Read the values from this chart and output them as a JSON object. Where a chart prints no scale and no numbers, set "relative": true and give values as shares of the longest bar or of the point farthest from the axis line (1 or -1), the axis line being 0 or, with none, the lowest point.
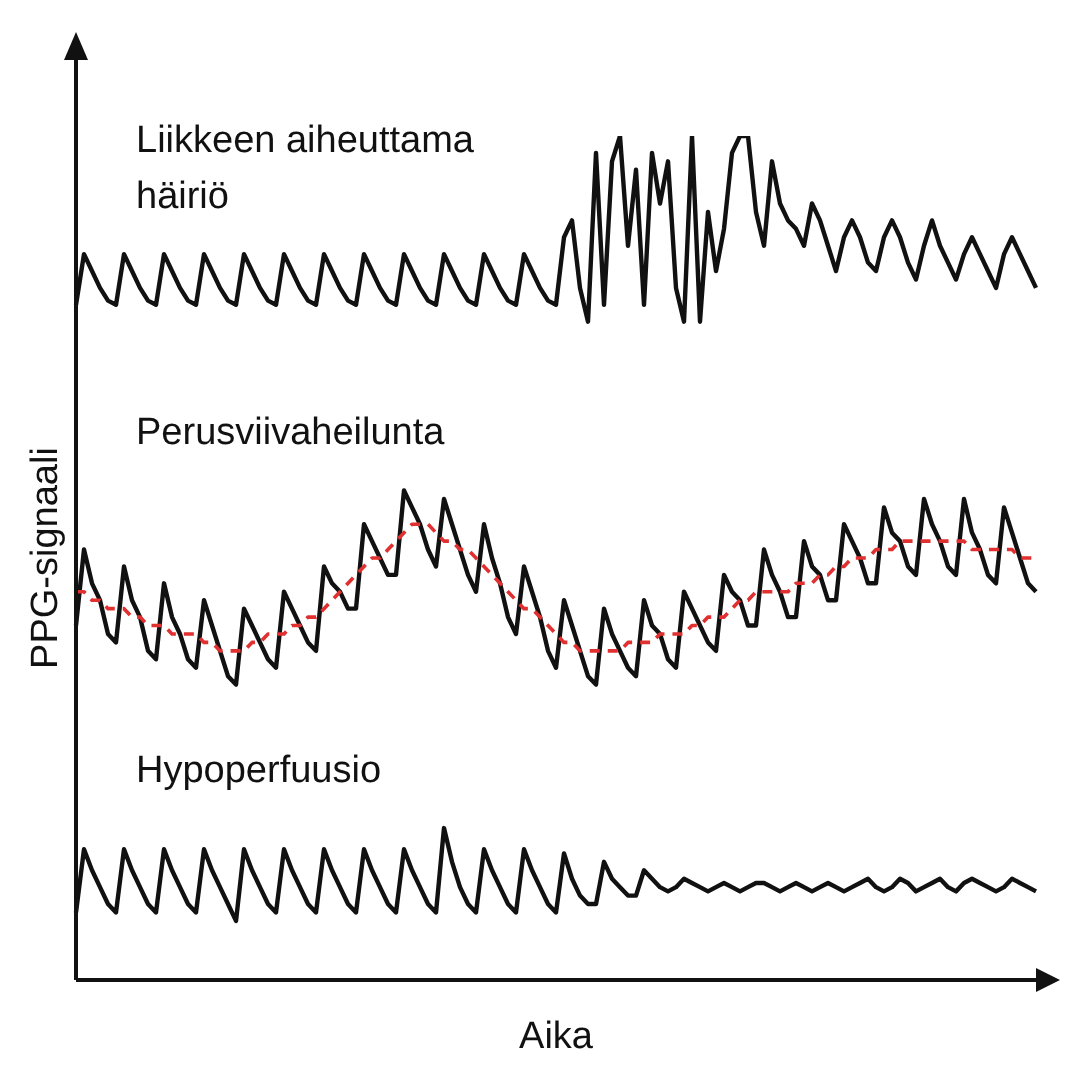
{
  "chart_data": {
    "type": "line",
    "relative": true,
    "xlabel": "Aika",
    "ylabel": "PPG-signaali",
    "categories": [
      null,
      null,
      null,
      null,
      null,
      null,
      null,
      null,
      null,
      null,
      null,
      null,
      null,
      null,
      null,
      null,
      null,
      null,
      null,
      null,
      null,
      null,
      null,
      null,
      null,
      null,
      null,
      null,
      null,
      null,
      null,
      null,
      null,
      null,
      null,
      null,
      null,
      null,
      null,
      null,
      null,
      null,
      null,
      null,
      null,
      null,
      null,
      null,
      null,
      null,
      null,
      null,
      null,
      null,
      null,
      null,
      null,
      null,
      null,
      null,
      null,
      null,
      null,
      null,
      null,
      null,
      null,
      null,
      null,
      null,
      null,
      null,
      null,
      null,
      null,
      null,
      null,
      null,
      null,
      null,
      null,
      null,
      null,
      null,
      null,
      null,
      null,
      null,
      null,
      null,
      null,
      null,
      null,
      null,
      null,
      null,
      null,
      null,
      null,
      null,
      null,
      null,
      null,
      null,
      null,
      null,
      null,
      null,
      null,
      null,
      null,
      null,
      null,
      null,
      null,
      null,
      null,
      null,
      null,
      null,
      null
    ],
    "series": [
      {
        "name": "Liikkeen aiheuttama häiriö",
        "color": "#111111",
        "values": [
          0.8,
          0.86,
          0.84,
          0.82,
          0.805,
          0.8,
          0.86,
          0.84,
          0.82,
          0.805,
          0.8,
          0.86,
          0.84,
          0.82,
          0.805,
          0.8,
          0.86,
          0.84,
          0.82,
          0.805,
          0.8,
          0.86,
          0.84,
          0.82,
          0.805,
          0.8,
          0.86,
          0.84,
          0.82,
          0.805,
          0.8,
          0.86,
          0.84,
          0.82,
          0.805,
          0.8,
          0.86,
          0.84,
          0.82,
          0.805,
          0.8,
          0.86,
          0.84,
          0.82,
          0.805,
          0.8,
          0.86,
          0.84,
          0.82,
          0.805,
          0.8,
          0.86,
          0.84,
          0.82,
          0.805,
          0.8,
          0.86,
          0.84,
          0.82,
          0.805,
          0.8,
          0.88,
          0.9,
          0.82,
          0.78,
          0.98,
          0.8,
          0.97,
          1,
          0.87,
          0.96,
          0.8,
          0.98,
          0.92,
          0.97,
          0.82,
          0.78,
          1,
          0.78,
          0.91,
          0.84,
          0.89,
          0.98,
          1,
          1,
          0.91,
          0.87,
          0.97,
          0.92,
          0.9,
          0.89,
          0.87,
          0.92,
          0.9,
          0.87,
          0.84,
          0.88,
          0.9,
          0.88,
          0.85,
          0.84,
          0.88,
          0.9,
          0.88,
          0.85,
          0.83,
          0.87,
          0.9,
          0.87,
          0.85,
          0.83,
          0.86,
          0.88,
          0.86,
          0.84,
          0.82,
          0.86,
          0.88,
          0.86,
          0.84,
          0.82
        ]
      },
      {
        "name": "Perusviivaheilunta",
        "color": "#111111",
        "values": [
          0.42,
          0.51,
          0.47,
          0.45,
          0.41,
          0.4,
          0.49,
          0.45,
          0.43,
          0.39,
          0.38,
          0.47,
          0.43,
          0.41,
          0.38,
          0.37,
          0.45,
          0.42,
          0.39,
          0.36,
          0.35,
          0.44,
          0.42,
          0.4,
          0.38,
          0.37,
          0.46,
          0.44,
          0.42,
          0.4,
          0.39,
          0.49,
          0.47,
          0.46,
          0.44,
          0.44,
          0.54,
          0.52,
          0.5,
          0.48,
          0.48,
          0.58,
          0.56,
          0.54,
          0.51,
          0.49,
          0.57,
          0.54,
          0.51,
          0.48,
          0.46,
          0.54,
          0.5,
          0.47,
          0.43,
          0.41,
          0.49,
          0.46,
          0.43,
          0.39,
          0.37,
          0.45,
          0.42,
          0.39,
          0.36,
          0.35,
          0.44,
          0.41,
          0.39,
          0.37,
          0.36,
          0.45,
          0.42,
          0.41,
          0.38,
          0.37,
          0.46,
          0.44,
          0.42,
          0.4,
          0.39,
          0.48,
          0.46,
          0.45,
          0.42,
          0.42,
          0.51,
          0.48,
          0.46,
          0.43,
          0.43,
          0.52,
          0.49,
          0.48,
          0.45,
          0.45,
          0.54,
          0.52,
          0.5,
          0.47,
          0.47,
          0.56,
          0.53,
          0.52,
          0.49,
          0.48,
          0.57,
          0.54,
          0.52,
          0.49,
          0.48,
          0.57,
          0.53,
          0.51,
          0.48,
          0.47,
          0.56,
          0.53,
          0.5,
          0.47,
          0.46
        ]
      },
      {
        "color": "#e0302f",
        "line_style": "dashed",
        "values": [
          0.46,
          0.46,
          0.45,
          0.45,
          0.44,
          0.44,
          0.44,
          0.43,
          0.43,
          0.42,
          0.42,
          0.42,
          0.41,
          0.41,
          0.41,
          0.41,
          0.4,
          0.4,
          0.39,
          0.39,
          0.39,
          0.39,
          0.4,
          0.4,
          0.41,
          0.41,
          0.41,
          0.42,
          0.42,
          0.43,
          0.43,
          0.44,
          0.45,
          0.46,
          0.47,
          0.48,
          0.49,
          0.5,
          0.5,
          0.51,
          0.52,
          0.53,
          0.54,
          0.54,
          0.54,
          0.53,
          0.52,
          0.52,
          0.51,
          0.51,
          0.5,
          0.49,
          0.48,
          0.47,
          0.46,
          0.45,
          0.44,
          0.44,
          0.43,
          0.42,
          0.41,
          0.4,
          0.4,
          0.39,
          0.39,
          0.39,
          0.39,
          0.39,
          0.39,
          0.4,
          0.4,
          0.4,
          0.4,
          0.41,
          0.41,
          0.41,
          0.41,
          0.42,
          0.42,
          0.43,
          0.43,
          0.43,
          0.44,
          0.45,
          0.45,
          0.46,
          0.46,
          0.46,
          0.46,
          0.46,
          0.47,
          0.47,
          0.47,
          0.48,
          0.48,
          0.49,
          0.49,
          0.5,
          0.5,
          0.5,
          0.51,
          0.51,
          0.51,
          0.52,
          0.52,
          0.52,
          0.52,
          0.52,
          0.52,
          0.52,
          0.52,
          0.52,
          0.51,
          0.51,
          0.51,
          0.51,
          0.51,
          0.51,
          0.5,
          0.5,
          0.5
        ]
      },
      {
        "name": "Hypoperfuusio",
        "color": "#111111",
        "values": [
          0.08,
          0.155,
          0.13,
          0.11,
          0.09,
          0.08,
          0.155,
          0.13,
          0.11,
          0.09,
          0.08,
          0.155,
          0.13,
          0.11,
          0.09,
          0.08,
          0.155,
          0.13,
          0.11,
          0.09,
          0.07,
          0.155,
          0.13,
          0.11,
          0.09,
          0.08,
          0.155,
          0.13,
          0.11,
          0.09,
          0.08,
          0.155,
          0.13,
          0.11,
          0.09,
          0.08,
          0.155,
          0.13,
          0.11,
          0.09,
          0.08,
          0.155,
          0.13,
          0.11,
          0.09,
          0.08,
          0.18,
          0.14,
          0.11,
          0.09,
          0.08,
          0.155,
          0.13,
          0.11,
          0.09,
          0.08,
          0.155,
          0.13,
          0.11,
          0.09,
          0.08,
          0.15,
          0.12,
          0.1,
          0.09,
          0.09,
          0.14,
          0.12,
          0.11,
          0.1,
          0.1,
          0.13,
          0.12,
          0.11,
          0.105,
          0.11,
          0.12,
          0.115,
          0.11,
          0.105,
          0.11,
          0.115,
          0.11,
          0.105,
          0.11,
          0.115,
          0.115,
          0.11,
          0.105,
          0.11,
          0.115,
          0.11,
          0.105,
          0.11,
          0.115,
          0.11,
          0.105,
          0.11,
          0.115,
          0.12,
          0.11,
          0.105,
          0.11,
          0.12,
          0.115,
          0.105,
          0.11,
          0.115,
          0.12,
          0.11,
          0.105,
          0.115,
          0.12,
          0.115,
          0.11,
          0.105,
          0.11,
          0.12,
          0.115,
          0.11,
          0.105
        ]
      }
    ]
  }
}
